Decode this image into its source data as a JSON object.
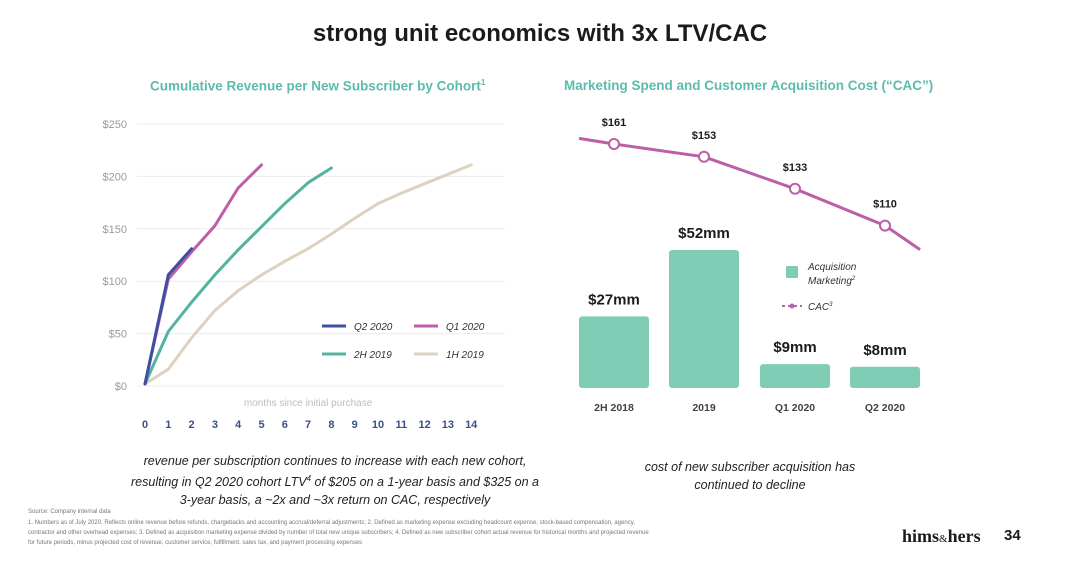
{
  "title": "strong unit economics with 3x LTV/CAC",
  "colors": {
    "q2_2020": "#3d4fa0",
    "q1_2020": "#bc5fa6",
    "h2_2019": "#53b3a0",
    "h1_2019": "#dfd1c0",
    "bar": "#7fcdb5",
    "cac_line": "#bc5fa6",
    "title_teal": "#5bbcad"
  },
  "left_chart": {
    "title": "Cumulative Revenue per New Subscriber by Cohort",
    "title_sup": "1",
    "caption": {
      "line1": "revenue per subscription continues to increase with each new cohort,",
      "line2_pre": "resulting in Q2 2020 cohort LTV",
      "line2_sup": "4",
      "line2_post": " of $205 on a 1-year basis and $325 on a",
      "line3": "3-year basis, a ~2x and ~3x return on CAC, respectively"
    }
  },
  "right_chart": {
    "title": "Marketing Spend and Customer Acquisition Cost (“CAC”)",
    "caption_line1": "cost of new subscriber acquisition has",
    "caption_line2": "continued to decline"
  },
  "chart_data": [
    {
      "type": "line",
      "title": "Cumulative Revenue per New Subscriber by Cohort",
      "xlabel": "months since initial purchase",
      "ylabel": "",
      "xlim": [
        0,
        14
      ],
      "ylim": [
        0,
        250
      ],
      "x_ticks": [
        "0",
        "1",
        "2",
        "3",
        "4",
        "5",
        "6",
        "7",
        "8",
        "9",
        "10",
        "11",
        "12",
        "13",
        "14"
      ],
      "y_ticks": [
        {
          "value": 0,
          "label": "$0"
        },
        {
          "value": 50,
          "label": "$50"
        },
        {
          "value": 100,
          "label": "$100"
        },
        {
          "value": 150,
          "label": "$150"
        },
        {
          "value": 200,
          "label": "$200"
        },
        {
          "value": 250,
          "label": "$250"
        }
      ],
      "legend_position": "bottom-right",
      "series": [
        {
          "key": "q2",
          "name": "Q2 2020",
          "color": "#3d4fa0",
          "x": [
            0,
            1,
            2
          ],
          "values": [
            2,
            106,
            131
          ]
        },
        {
          "key": "q1",
          "name": "Q1 2020",
          "color": "#bc5fa6",
          "x": [
            0,
            1,
            2,
            3,
            4,
            5
          ],
          "values": [
            2,
            102,
            128,
            153,
            189,
            211
          ]
        },
        {
          "key": "h2",
          "name": "2H 2019",
          "color": "#53b3a0",
          "x": [
            0,
            1,
            2,
            3,
            4,
            5,
            6,
            7,
            8
          ],
          "values": [
            2,
            52,
            80,
            106,
            130,
            152,
            174,
            194,
            208
          ]
        },
        {
          "key": "h1",
          "name": "1H 2019",
          "color": "#dfd1c0",
          "x": [
            0,
            1,
            2,
            3,
            4,
            5,
            6,
            7,
            8,
            9,
            10,
            11,
            12,
            13,
            14
          ],
          "values": [
            2,
            16,
            46,
            72,
            91,
            106,
            119,
            131,
            145,
            160,
            174,
            184,
            193,
            202,
            211
          ]
        }
      ]
    },
    {
      "type": "bar",
      "title": "Marketing Spend and Customer Acquisition Cost (“CAC”)",
      "categories": [
        "2H 2018",
        "2019",
        "Q1 2020",
        "Q2 2020"
      ],
      "series": [
        {
          "name": "Acquisition Marketing",
          "name_sup": "2",
          "unit": "$mm",
          "values": [
            27,
            52,
            9,
            8
          ],
          "labels": [
            "$27mm",
            "$52mm",
            "$9mm",
            "$8mm"
          ]
        },
        {
          "name": "CAC",
          "name_sup": "3",
          "type": "line",
          "unit": "$",
          "values": [
            161,
            153,
            133,
            110
          ],
          "labels": [
            "$161",
            "$153",
            "$133",
            "$110"
          ]
        }
      ],
      "legend": {
        "position": "right",
        "line1": "Acquisition",
        "line2": "Marketing",
        "cac_label": "CAC"
      }
    }
  ],
  "footnotes": {
    "source": "Source: Company internal data",
    "note1": "1. Numbers as of July 2020. Reflects online revenue before refunds, chargebacks and accounting accrual/deferral adjustments; 2. Defined as marketing expense excluding headcount expense, stock-based compensation, agency,",
    "note2": "contractor and other overhead expenses; 3. Defined as acquisition marketing expense divided by number of total new unique subscribers; 4. Defined as new subscriber cohort actual revenue for historical months and projected revenue",
    "note3": "for future periods, minus projected cost of revenue, customer service, fulfillment, sales tax, and payment processing expenses"
  },
  "brand": {
    "left": "hims",
    "amp": "&",
    "right": "hers"
  },
  "page_number": "34"
}
